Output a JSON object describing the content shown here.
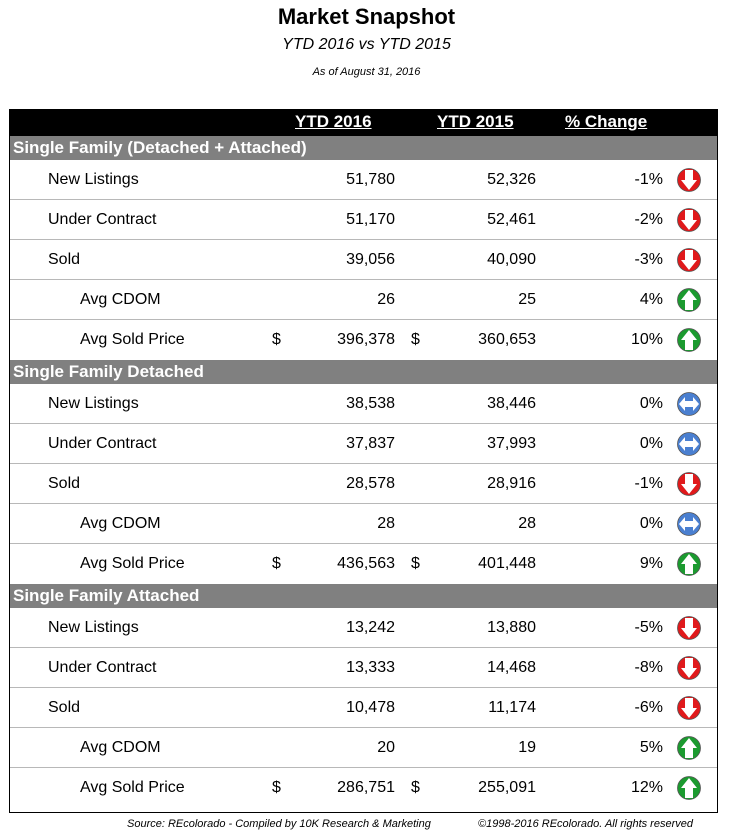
{
  "title": "Market Snapshot",
  "subtitle": "YTD 2016 vs YTD 2015",
  "as_of": "As of August 31, 2016",
  "headers": {
    "ytd2016": "YTD 2016",
    "ytd2015": "YTD 2015",
    "change": "% Change"
  },
  "sections": [
    {
      "label": "Single Family (Detached + Attached)",
      "rows": [
        {
          "label": "New Listings",
          "y2016": "51,780",
          "y2015": "52,326",
          "change": "-1%",
          "trend": "down"
        },
        {
          "label": "Under Contract",
          "y2016": "51,170",
          "y2015": "52,461",
          "change": "-2%",
          "trend": "down"
        },
        {
          "label": "Sold",
          "y2016": "39,056",
          "y2015": "40,090",
          "change": "-3%",
          "trend": "down"
        },
        {
          "label": "Avg CDOM",
          "y2016": "26",
          "y2015": "25",
          "change": "4%",
          "trend": "up"
        },
        {
          "label": "Avg Sold Price",
          "currency": "$",
          "y2016": "396,378",
          "y2015": "360,653",
          "change": "10%",
          "trend": "up"
        }
      ]
    },
    {
      "label": "Single Family Detached",
      "rows": [
        {
          "label": "New Listings",
          "y2016": "38,538",
          "y2015": "38,446",
          "change": "0%",
          "trend": "flat"
        },
        {
          "label": "Under Contract",
          "y2016": "37,837",
          "y2015": "37,993",
          "change": "0%",
          "trend": "flat"
        },
        {
          "label": "Sold",
          "y2016": "28,578",
          "y2015": "28,916",
          "change": "-1%",
          "trend": "down"
        },
        {
          "label": "Avg CDOM",
          "y2016": "28",
          "y2015": "28",
          "change": "0%",
          "trend": "flat"
        },
        {
          "label": "Avg Sold Price",
          "currency": "$",
          "y2016": "436,563",
          "y2015": "401,448",
          "change": "9%",
          "trend": "up"
        }
      ]
    },
    {
      "label": "Single Family Attached",
      "rows": [
        {
          "label": "New Listings",
          "y2016": "13,242",
          "y2015": "13,880",
          "change": "-5%",
          "trend": "down"
        },
        {
          "label": "Under Contract",
          "y2016": "13,333",
          "y2015": "14,468",
          "change": "-8%",
          "trend": "down"
        },
        {
          "label": "Sold",
          "y2016": "10,478",
          "y2015": "11,174",
          "change": "-6%",
          "trend": "down"
        },
        {
          "label": "Avg CDOM",
          "y2016": "20",
          "y2015": "19",
          "change": "5%",
          "trend": "up"
        },
        {
          "label": "Avg Sold Price",
          "currency": "$",
          "y2016": "286,751",
          "y2015": "255,091",
          "change": "12%",
          "trend": "up"
        }
      ]
    }
  ],
  "trend_icons": {
    "down": "down-arrow-icon",
    "up": "up-arrow-icon",
    "flat": "no-change-icon"
  },
  "colors": {
    "down": "#e0191b",
    "up": "#1b9a2f",
    "flat": "#4a7fd0",
    "section_band": "#808080",
    "header_band": "#000000"
  },
  "footer": {
    "source": "Source: REcolorado - Compiled by 10K Research & Marketing",
    "copyright": "©1998-2016 REcolorado.  All rights reserved"
  }
}
